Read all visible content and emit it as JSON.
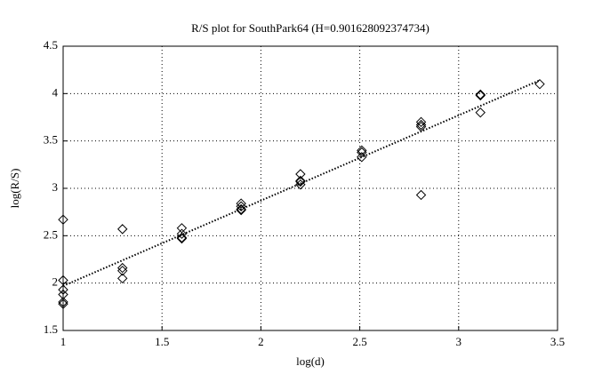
{
  "chart_data": {
    "type": "scatter",
    "title": "R/S plot for SouthPark64 (H=0.901628092374734)",
    "x_label": "log(d)",
    "y_label": "log(R/S)",
    "xlim": [
      1,
      3.5
    ],
    "xticks": [
      1,
      1.5,
      2,
      2.5,
      3,
      3.5
    ],
    "ylim": [
      1.5,
      4.5
    ],
    "yticks": [
      1.5,
      2,
      2.5,
      3,
      3.5,
      4,
      4.5
    ],
    "grid": true,
    "series": [
      {
        "type": "scatter",
        "color": "#000000",
        "x": [
          1,
          1,
          1,
          1,
          1,
          1,
          1.3,
          1.3,
          1.3,
          1.3,
          1.6,
          1.6,
          1.6,
          1.6,
          1.9,
          1.9,
          1.9,
          1.9,
          2.2,
          2.2,
          2.2,
          2.2,
          2.51,
          2.51,
          2.51,
          2.81,
          2.81,
          2.81,
          2.81,
          3.11,
          3.11,
          3.11,
          3.41
        ],
        "values": [
          2.67,
          2.03,
          1.93,
          1.88,
          1.8,
          1.78,
          2.57,
          2.16,
          2.13,
          2.05,
          2.58,
          2.52,
          2.48,
          2.47,
          2.84,
          2.81,
          2.78,
          2.77,
          3.15,
          3.08,
          3.07,
          3.04,
          3.4,
          3.38,
          3.33,
          3.7,
          3.67,
          3.65,
          2.93,
          3.99,
          3.98,
          3.8,
          4.1
        ]
      },
      {
        "type": "line",
        "color": "#000000",
        "x": [
          1,
          3.41
        ],
        "values": [
          1.97,
          4.14
        ]
      }
    ]
  }
}
